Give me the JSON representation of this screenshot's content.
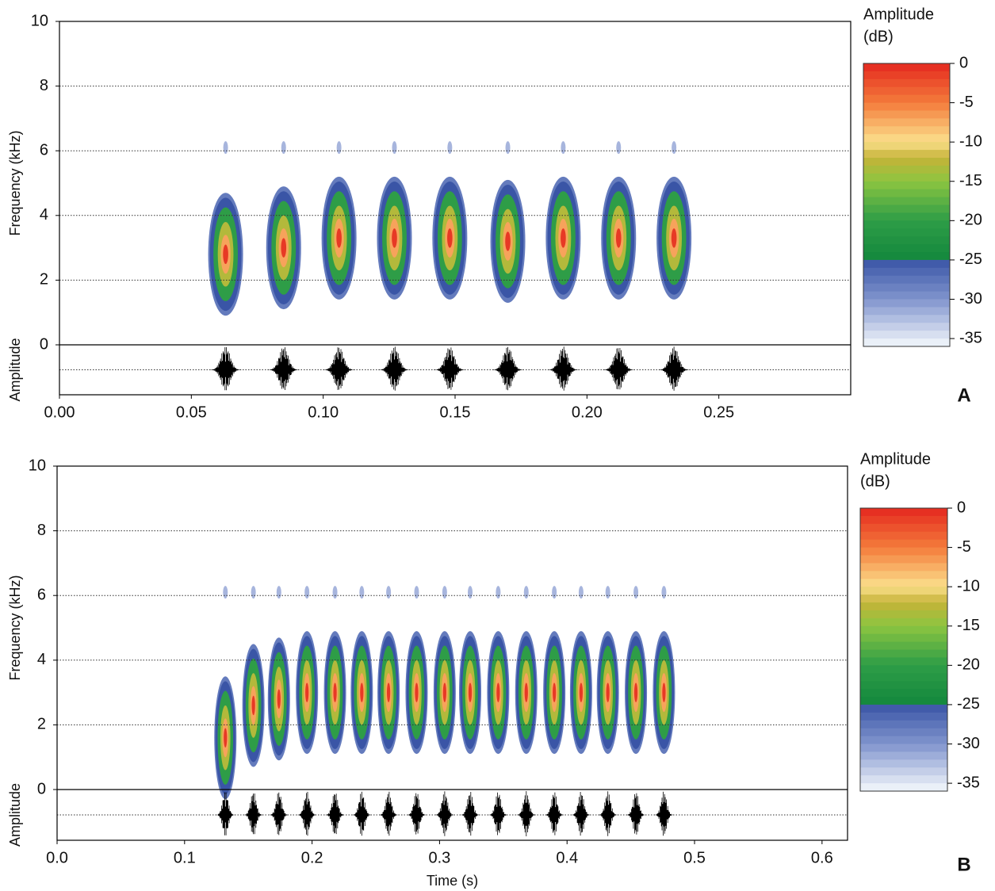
{
  "chart_data": [
    {
      "type": "spectrogram",
      "panel_label": "A",
      "y_label": "Frequency (kHz)",
      "amplitude_label": "Amplitude",
      "colorbar_title": [
        "Amplitude",
        "(dB)"
      ],
      "x": [
        0.063,
        0.085,
        0.106,
        0.127,
        0.148,
        0.17,
        0.191,
        0.212,
        0.233
      ],
      "values": [
        2.8,
        3.0,
        3.3,
        3.3,
        3.3,
        3.2,
        3.3,
        3.3,
        3.3
      ],
      "xlim": [
        0,
        0.3
      ],
      "xticks": [
        {
          "value": 0,
          "label": "0.00"
        },
        0.05,
        {
          "value": 0.1,
          "label": "0.10"
        },
        0.15,
        {
          "value": 0.2,
          "label": "0.20"
        },
        0.25
      ],
      "ylim": [
        0,
        10
      ],
      "yticks": [
        0,
        2,
        4,
        6,
        8,
        10
      ],
      "grid": true,
      "clim": [
        -36,
        0
      ],
      "cticks": [
        0,
        -5,
        -10,
        -15,
        -20,
        -25,
        -30,
        -35
      ],
      "colormap": [
        {
          "value": 0,
          "color": "#e4281f"
        },
        {
          "value": -5,
          "color": "#f47b3b"
        },
        {
          "value": -10,
          "color": "#fbe08c"
        },
        {
          "value": -12,
          "color": "#c6b338"
        },
        {
          "value": -15,
          "color": "#8cc540"
        },
        {
          "value": -20,
          "color": "#2e9d47"
        },
        {
          "value": -24.5,
          "color": "#168a3e"
        },
        {
          "value": -25,
          "color": "#3a55a6"
        },
        {
          "value": -30,
          "color": "#8094cd"
        },
        {
          "value": -36,
          "color": "#f4f8fc"
        }
      ]
    },
    {
      "type": "spectrogram",
      "panel_label": "B",
      "y_label": "Frequency (kHz)",
      "amplitude_label": "Amplitude",
      "x_label": "Time (s)",
      "colorbar_title": [
        "Amplitude",
        "(dB)"
      ],
      "x": [
        0.132,
        0.154,
        0.174,
        0.196,
        0.218,
        0.239,
        0.26,
        0.282,
        0.304,
        0.324,
        0.346,
        0.368,
        0.39,
        0.411,
        0.432,
        0.454,
        0.476
      ],
      "values": [
        1.6,
        2.6,
        2.8,
        3.0,
        3.0,
        3.0,
        3.0,
        3.0,
        3.0,
        3.0,
        3.0,
        3.0,
        3.0,
        3.0,
        3.0,
        3.0,
        3.0
      ],
      "xlim": [
        0,
        0.62
      ],
      "xticks": [
        {
          "value": 0,
          "label": "0.0"
        },
        0.1,
        0.2,
        0.3,
        0.4,
        0.5,
        0.6
      ],
      "ylim": [
        0,
        10
      ],
      "yticks": [
        0,
        2,
        4,
        6,
        8,
        10
      ],
      "grid": true,
      "clim": [
        -36,
        0
      ],
      "cticks": [
        0,
        -5,
        -10,
        -15,
        -20,
        -25,
        -30,
        -35
      ],
      "colormap": [
        {
          "value": 0,
          "color": "#e4281f"
        },
        {
          "value": -5,
          "color": "#f47b3b"
        },
        {
          "value": -10,
          "color": "#fbe08c"
        },
        {
          "value": -12,
          "color": "#c6b338"
        },
        {
          "value": -15,
          "color": "#8cc540"
        },
        {
          "value": -20,
          "color": "#2e9d47"
        },
        {
          "value": -24.5,
          "color": "#168a3e"
        },
        {
          "value": -25,
          "color": "#3a55a6"
        },
        {
          "value": -30,
          "color": "#8094cd"
        },
        {
          "value": -36,
          "color": "#f4f8fc"
        }
      ]
    }
  ]
}
